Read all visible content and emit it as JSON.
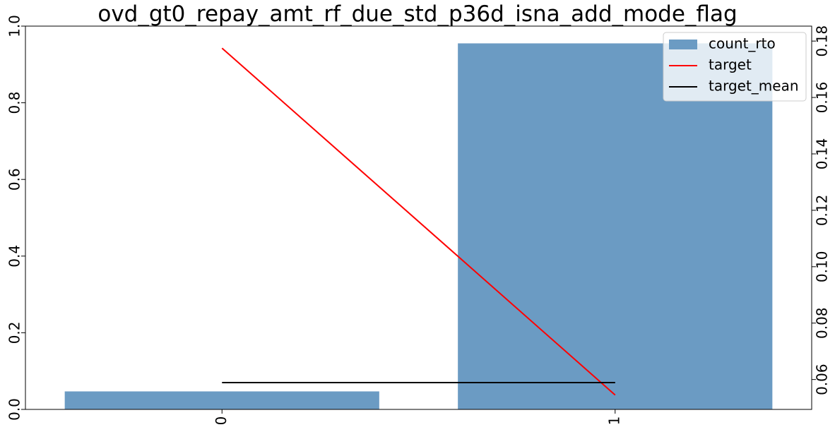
{
  "chart_data": {
    "type": "bar",
    "title": "ovd_gt0_repay_amt_rf_due_std_p36d_isna_add_mode_flag",
    "categories": [
      "0",
      "1"
    ],
    "series": [
      {
        "name": "count_rto",
        "type": "bar",
        "axis": "left",
        "values": [
          0.047,
          0.955
        ],
        "color": "#6b9bc3"
      },
      {
        "name": "target",
        "type": "line",
        "axis": "right",
        "values": [
          0.1775,
          0.0545
        ],
        "color": "#ff0000"
      },
      {
        "name": "target_mean",
        "type": "line",
        "axis": "right",
        "values": [
          0.0589,
          0.0589
        ],
        "color": "#000000"
      }
    ],
    "y_left": {
      "ylim": [
        0.0,
        1.0
      ],
      "ticks": [
        "0.0",
        "0.2",
        "0.4",
        "0.6",
        "0.8",
        "1.0"
      ]
    },
    "y_right": {
      "ylim": [
        0.0494,
        0.1853
      ],
      "ticks": [
        "0.06",
        "0.08",
        "0.10",
        "0.12",
        "0.14",
        "0.16",
        "0.18"
      ]
    },
    "x_ticks": [
      "0",
      "1"
    ],
    "legend": {
      "placement": "top-right",
      "entries": [
        "count_rto",
        "target",
        "target_mean"
      ]
    },
    "grid": false
  }
}
